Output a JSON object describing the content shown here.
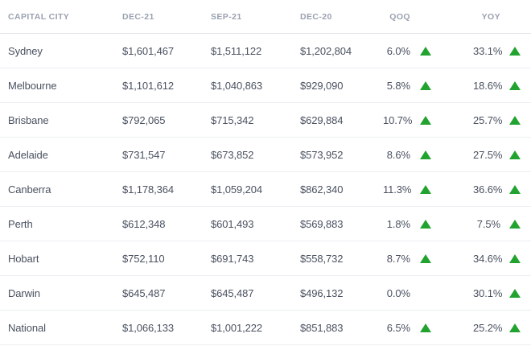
{
  "theme": {
    "up_arrow_color": "#22a330",
    "body_text_color": "#4a5160",
    "header_text_color": "#9aa1af",
    "row_border_color": "#eceef1",
    "header_border_color": "#e2e4e8",
    "background_color": "#ffffff"
  },
  "chart_data": {
    "type": "table",
    "columns": [
      "CAPITAL CITY",
      "DEC-21",
      "SEP-21",
      "DEC-20",
      "QOQ",
      "YOY"
    ],
    "up_arrow_icon": "triangle-up",
    "rows": [
      {
        "capital_city": "Sydney",
        "dec_21": "$1,601,467",
        "sep_21": "$1,511,122",
        "dec_20": "$1,202,804",
        "qoq": "6.0%",
        "qoq_direction": "up",
        "yoy": "33.1%",
        "yoy_direction": "up"
      },
      {
        "capital_city": "Melbourne",
        "dec_21": "$1,101,612",
        "sep_21": "$1,040,863",
        "dec_20": "$929,090",
        "qoq": "5.8%",
        "qoq_direction": "up",
        "yoy": "18.6%",
        "yoy_direction": "up"
      },
      {
        "capital_city": "Brisbane",
        "dec_21": "$792,065",
        "sep_21": "$715,342",
        "dec_20": "$629,884",
        "qoq": "10.7%",
        "qoq_direction": "up",
        "yoy": "25.7%",
        "yoy_direction": "up"
      },
      {
        "capital_city": "Adelaide",
        "dec_21": "$731,547",
        "sep_21": "$673,852",
        "dec_20": "$573,952",
        "qoq": "8.6%",
        "qoq_direction": "up",
        "yoy": "27.5%",
        "yoy_direction": "up"
      },
      {
        "capital_city": "Canberra",
        "dec_21": "$1,178,364",
        "sep_21": "$1,059,204",
        "dec_20": "$862,340",
        "qoq": "11.3%",
        "qoq_direction": "up",
        "yoy": "36.6%",
        "yoy_direction": "up"
      },
      {
        "capital_city": "Perth",
        "dec_21": "$612,348",
        "sep_21": "$601,493",
        "dec_20": "$569,883",
        "qoq": "1.8%",
        "qoq_direction": "up",
        "yoy": "7.5%",
        "yoy_direction": "up"
      },
      {
        "capital_city": "Hobart",
        "dec_21": "$752,110",
        "sep_21": "$691,743",
        "dec_20": "$558,732",
        "qoq": "8.7%",
        "qoq_direction": "up",
        "yoy": "34.6%",
        "yoy_direction": "up"
      },
      {
        "capital_city": "Darwin",
        "dec_21": "$645,487",
        "sep_21": "$645,487",
        "dec_20": "$496,132",
        "qoq": "0.0%",
        "qoq_direction": "none",
        "yoy": "30.1%",
        "yoy_direction": "up"
      },
      {
        "capital_city": "National",
        "dec_21": "$1,066,133",
        "sep_21": "$1,001,222",
        "dec_20": "$851,883",
        "qoq": "6.5%",
        "qoq_direction": "up",
        "yoy": "25.2%",
        "yoy_direction": "up"
      }
    ]
  }
}
